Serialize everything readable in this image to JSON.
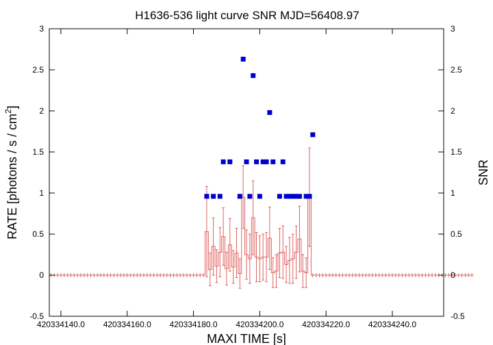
{
  "chart_data": {
    "type": "scatter",
    "title": "H1636-536 light curve  SNR MJD=56408.97",
    "xlabel": "MAXI TIME [s]",
    "ylabel": "RATE [photons / s / cm",
    "ylabel_sup": "2",
    "ylabel_close": "]",
    "y2label": "SNR",
    "xlim": [
      420334136.5,
      420334255.5
    ],
    "ylim": [
      -0.5,
      3
    ],
    "y2lim": [
      -0.5,
      3
    ],
    "x_ticks": [
      {
        "value": 420334140,
        "label": "420334140.0"
      },
      {
        "value": 420334160,
        "label": "420334160.0"
      },
      {
        "value": 420334180,
        "label": "420334180.0"
      },
      {
        "value": 420334200,
        "label": "420334200.0"
      },
      {
        "value": 420334220,
        "label": "420334220.0"
      },
      {
        "value": 420334240,
        "label": "420334240.0"
      }
    ],
    "y_ticks": [
      {
        "value": -0.5,
        "label": "-0.5"
      },
      {
        "value": 0,
        "label": "0"
      },
      {
        "value": 0.5,
        "label": "0.5"
      },
      {
        "value": 1,
        "label": "1"
      },
      {
        "value": 1.5,
        "label": "1.5"
      },
      {
        "value": 2,
        "label": "2"
      },
      {
        "value": 2.5,
        "label": "2.5"
      },
      {
        "value": 3,
        "label": "3"
      }
    ],
    "grid": false,
    "legend": "none",
    "colors": {
      "rate": "#e06060",
      "snr": "#0000cc"
    },
    "series": [
      {
        "kind": "rate_histogram",
        "x_start": 420334136.5,
        "bin_width": 1,
        "values": [
          0,
          0,
          0,
          0,
          0,
          0,
          0,
          0,
          0,
          0,
          0,
          0,
          0,
          0,
          0,
          0,
          0,
          0,
          0,
          0,
          0,
          0,
          0,
          0,
          0,
          0,
          0,
          0,
          0,
          0,
          0,
          0,
          0,
          0,
          0,
          0,
          0,
          0,
          0,
          0,
          0,
          0,
          0,
          0,
          0,
          0,
          0,
          0.53,
          0.07,
          0.35,
          0.11,
          0.28,
          0.47,
          0.08,
          0.37,
          0.1,
          0.27,
          0.02,
          0.95,
          0.25,
          0.2,
          0.7,
          0.22,
          0.2,
          0.22,
          0.22,
          0.45,
          0.03,
          0.05,
          0.27,
          0.28,
          0.13,
          0.18,
          0.2,
          0.28,
          0.44,
          0.05,
          0.03,
          0.95,
          0,
          0,
          0,
          0,
          0,
          0,
          0,
          0,
          0,
          0,
          0,
          0,
          0,
          0,
          0,
          0,
          0,
          0,
          0,
          0,
          0,
          0,
          0,
          0,
          0,
          0,
          0,
          0,
          0,
          0,
          0,
          0,
          0,
          0,
          0,
          0,
          0,
          0,
          0,
          0,
          0,
          0,
          0,
          0,
          0,
          0,
          0,
          0,
          0
        ],
        "errors": [
          0,
          0,
          0,
          0,
          0,
          0,
          0,
          0,
          0,
          0,
          0,
          0,
          0,
          0,
          0,
          0,
          0,
          0,
          0,
          0,
          0,
          0,
          0,
          0,
          0,
          0,
          0,
          0,
          0,
          0,
          0,
          0,
          0,
          0,
          0,
          0,
          0,
          0,
          0,
          0,
          0,
          0,
          0,
          0,
          0,
          0,
          0,
          0.55,
          0.2,
          0.35,
          0.2,
          0.3,
          0.35,
          0.2,
          0.32,
          0.2,
          0.3,
          0.18,
          0.38,
          0.3,
          0.3,
          0.45,
          0.3,
          0.28,
          0.28,
          0.3,
          0.38,
          0.18,
          0.2,
          0.3,
          0.32,
          0.22,
          0.28,
          0.3,
          0.32,
          0.4,
          0.2,
          0.18,
          0.6,
          0,
          0,
          0,
          0,
          0,
          0,
          0,
          0,
          0,
          0,
          0,
          0,
          0,
          0,
          0,
          0,
          0,
          0,
          0,
          0,
          0,
          0,
          0,
          0,
          0,
          0,
          0,
          0,
          0,
          0,
          0,
          0,
          0,
          0,
          0,
          0,
          0,
          0,
          0,
          0,
          0,
          0,
          0,
          0,
          0,
          0,
          0,
          0,
          0
        ]
      },
      {
        "kind": "snr_points",
        "x": [
          420334184,
          420334186,
          420334188,
          420334189,
          420334191,
          420334194,
          420334195,
          420334196,
          420334197,
          420334198,
          420334199,
          420334200,
          420334201,
          420334202,
          420334203,
          420334204,
          420334206,
          420334207,
          420334208,
          420334209,
          420334210,
          420334211,
          420334212,
          420334214,
          420334215,
          420334216
        ],
        "y": [
          0.96,
          0.96,
          0.96,
          1.38,
          1.38,
          0.96,
          2.63,
          1.38,
          0.96,
          2.43,
          1.38,
          0.96,
          1.38,
          1.38,
          1.98,
          1.38,
          0.96,
          1.38,
          0.96,
          0.96,
          0.96,
          0.96,
          0.96,
          0.96,
          0.96,
          1.71
        ]
      }
    ]
  }
}
